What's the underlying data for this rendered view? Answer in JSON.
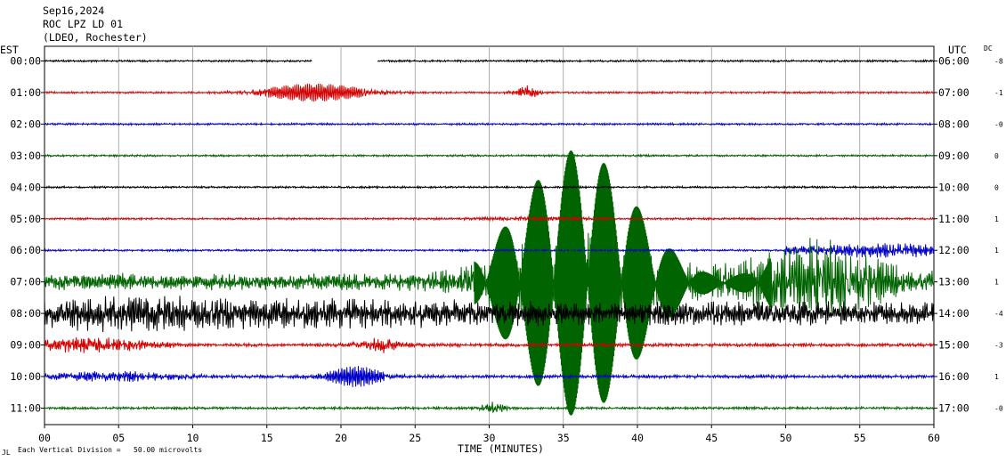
{
  "header": {
    "date": "Sep16,2024",
    "station": "ROC LPZ LD 01",
    "network": "(LDEO, Rochester)"
  },
  "left_axis_label": "EST",
  "right_axis_label": "UTC",
  "dc_label": "DC",
  "x_axis_label": "TIME (MINUTES)",
  "footer_note": "Each Vertical Division =   50.00 microvolts",
  "footer_mark": "JL",
  "chart_data": {
    "type": "line",
    "xlabel": "TIME (MINUTES)",
    "xlim": [
      0,
      60
    ],
    "x_ticks": [
      "00",
      "05",
      "10",
      "15",
      "20",
      "25",
      "30",
      "35",
      "40",
      "45",
      "50",
      "55",
      "60"
    ],
    "rows": [
      {
        "est": "00:00",
        "utc": "06:00",
        "dc": "-8",
        "color": "#000000"
      },
      {
        "est": "01:00",
        "utc": "07:00",
        "dc": "-1",
        "color": "#d40000"
      },
      {
        "est": "02:00",
        "utc": "08:00",
        "dc": "-0",
        "color": "#0000c8"
      },
      {
        "est": "03:00",
        "utc": "09:00",
        "dc": "0",
        "color": "#006400"
      },
      {
        "est": "04:00",
        "utc": "10:00",
        "dc": "0",
        "color": "#000000"
      },
      {
        "est": "05:00",
        "utc": "11:00",
        "dc": "1",
        "color": "#d40000"
      },
      {
        "est": "06:00",
        "utc": "12:00",
        "dc": "1",
        "color": "#0000c8"
      },
      {
        "est": "07:00",
        "utc": "13:00",
        "dc": "1",
        "color": "#006400"
      },
      {
        "est": "08:00",
        "utc": "14:00",
        "dc": "-4",
        "color": "#000000"
      },
      {
        "est": "09:00",
        "utc": "15:00",
        "dc": "-3",
        "color": "#d40000"
      },
      {
        "est": "10:00",
        "utc": "16:00",
        "dc": "1",
        "color": "#0000c8"
      },
      {
        "est": "11:00",
        "utc": "17:00",
        "dc": "-0",
        "color": "#006400"
      }
    ]
  }
}
